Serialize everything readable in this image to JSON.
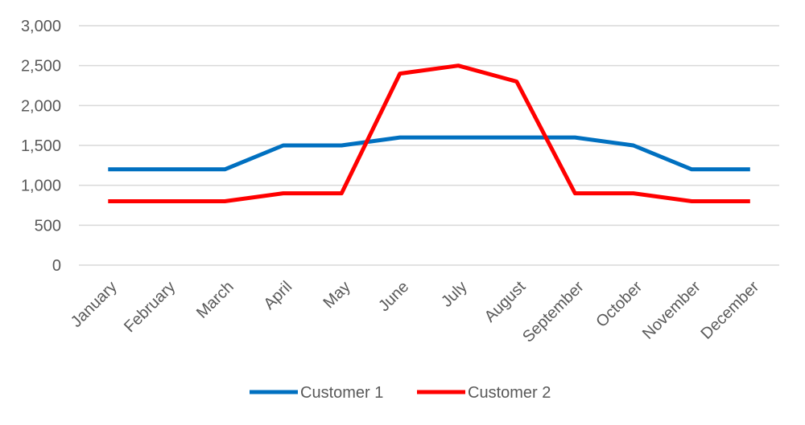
{
  "chart_data": {
    "type": "line",
    "title": "",
    "xlabel": "",
    "ylabel": "",
    "categories": [
      "January",
      "February",
      "March",
      "April",
      "May",
      "June",
      "July",
      "August",
      "September",
      "October",
      "November",
      "December"
    ],
    "series": [
      {
        "name": "Customer 1",
        "color": "#0070C0",
        "values": [
          1200,
          1200,
          1200,
          1500,
          1500,
          1600,
          1600,
          1600,
          1600,
          1500,
          1200,
          1200
        ]
      },
      {
        "name": "Customer 2",
        "color": "#FF0000",
        "values": [
          800,
          800,
          800,
          900,
          900,
          2400,
          2500,
          2300,
          900,
          900,
          800,
          800
        ]
      }
    ],
    "ylim": [
      0,
      3000
    ],
    "yticks": [
      0,
      500,
      1000,
      1500,
      2000,
      2500,
      3000
    ],
    "ytick_labels": [
      "0",
      "500",
      "1,000",
      "1,500",
      "2,000",
      "2,500",
      "3,000"
    ],
    "grid": true,
    "gridline_color": "#d9d9d9",
    "legend_position": "bottom"
  }
}
